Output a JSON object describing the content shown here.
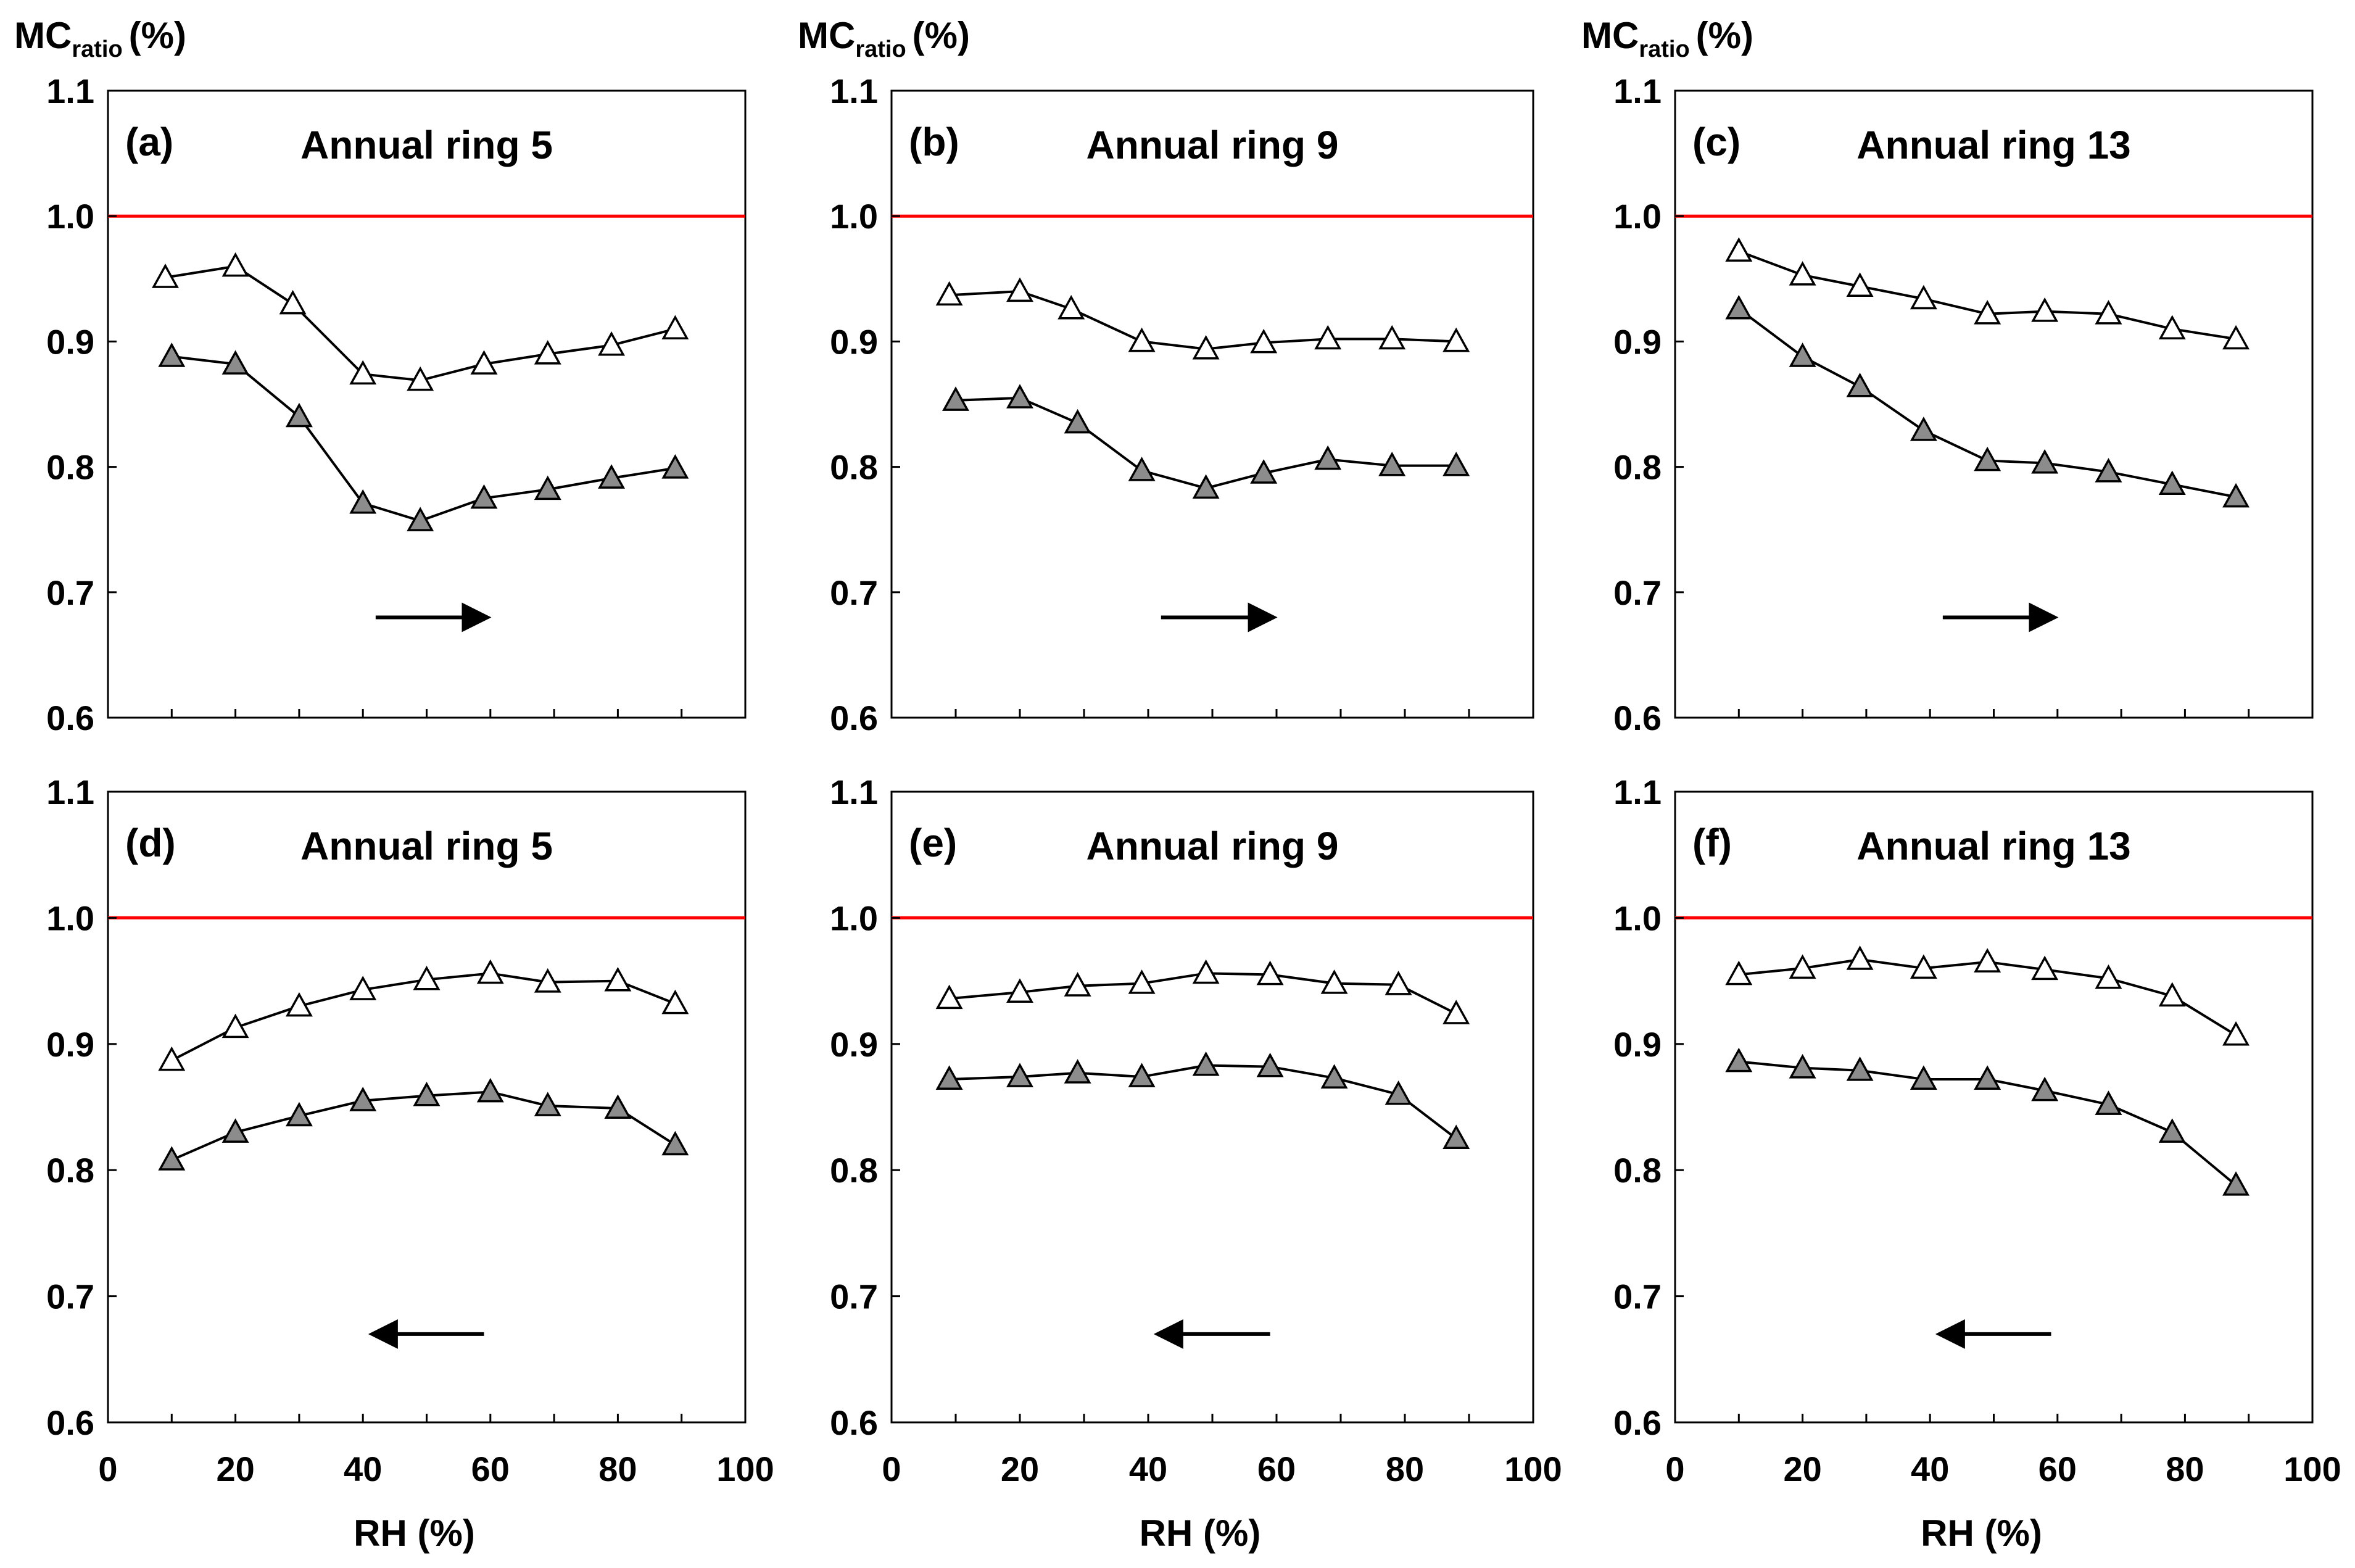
{
  "ylabel": {
    "main": "MC",
    "sub": "ratio",
    "unit": "(%)"
  },
  "xlabel": "RH (%)",
  "x_ticks": [
    "0",
    "20",
    "40",
    "60",
    "80",
    "100"
  ],
  "y_ticks": [
    "0.6",
    "0.7",
    "0.8",
    "0.9",
    "1.0",
    "1.1"
  ],
  "chart_data": [
    {
      "panel": "(a)",
      "title": "Annual ring 5",
      "type": "line",
      "direction": "right",
      "xlim": [
        0,
        100
      ],
      "ylim": [
        0.6,
        1.1
      ],
      "reference_line": 1.0,
      "series": [
        {
          "name": "open",
          "marker": "open-triangle",
          "x": [
            9,
            20,
            29,
            40,
            49,
            59,
            69,
            79,
            89
          ],
          "values": [
            0.951,
            0.96,
            0.93,
            0.874,
            0.869,
            0.882,
            0.89,
            0.897,
            0.91
          ]
        },
        {
          "name": "filled",
          "marker": "filled-triangle",
          "x": [
            10,
            20,
            30,
            40,
            49,
            59,
            69,
            79,
            89
          ],
          "values": [
            0.888,
            0.882,
            0.84,
            0.771,
            0.757,
            0.775,
            0.782,
            0.791,
            0.799
          ]
        }
      ]
    },
    {
      "panel": "(b)",
      "title": "Annual ring 9",
      "type": "line",
      "direction": "right",
      "xlim": [
        0,
        100
      ],
      "ylim": [
        0.6,
        1.1
      ],
      "reference_line": 1.0,
      "series": [
        {
          "name": "open",
          "marker": "open-triangle",
          "x": [
            9,
            20,
            28,
            39,
            49,
            58,
            68,
            78,
            88
          ],
          "values": [
            0.937,
            0.94,
            0.926,
            0.9,
            0.894,
            0.899,
            0.902,
            0.902,
            0.9
          ]
        },
        {
          "name": "filled",
          "marker": "filled-triangle",
          "x": [
            10,
            20,
            29,
            39,
            49,
            58,
            68,
            78,
            88
          ],
          "values": [
            0.853,
            0.855,
            0.835,
            0.797,
            0.783,
            0.795,
            0.806,
            0.801,
            0.801
          ]
        }
      ]
    },
    {
      "panel": "(c)",
      "title": "Annual ring 13",
      "type": "line",
      "direction": "right",
      "xlim": [
        0,
        100
      ],
      "ylim": [
        0.6,
        1.1
      ],
      "reference_line": 1.0,
      "series": [
        {
          "name": "open",
          "marker": "open-triangle",
          "x": [
            10,
            20,
            29,
            39,
            49,
            58,
            68,
            78,
            88
          ],
          "values": [
            0.972,
            0.953,
            0.944,
            0.934,
            0.922,
            0.924,
            0.922,
            0.91,
            0.902
          ]
        },
        {
          "name": "filled",
          "marker": "filled-triangle",
          "x": [
            10,
            20,
            29,
            39,
            49,
            58,
            68,
            78,
            88
          ],
          "values": [
            0.926,
            0.888,
            0.864,
            0.829,
            0.805,
            0.803,
            0.796,
            0.786,
            0.776
          ]
        }
      ]
    },
    {
      "panel": "(d)",
      "title": "Annual ring 5",
      "type": "line",
      "direction": "left",
      "xlim": [
        0,
        100
      ],
      "ylim": [
        0.6,
        1.1
      ],
      "reference_line": 1.0,
      "series": [
        {
          "name": "open",
          "marker": "open-triangle",
          "x": [
            10,
            20,
            30,
            40,
            50,
            60,
            69,
            80,
            89
          ],
          "values": [
            0.887,
            0.913,
            0.93,
            0.943,
            0.951,
            0.956,
            0.949,
            0.95,
            0.932
          ]
        },
        {
          "name": "filled",
          "marker": "filled-triangle",
          "x": [
            10,
            20,
            30,
            40,
            50,
            60,
            69,
            80,
            89
          ],
          "values": [
            0.808,
            0.83,
            0.843,
            0.855,
            0.859,
            0.862,
            0.851,
            0.849,
            0.82
          ]
        }
      ]
    },
    {
      "panel": "(e)",
      "title": "Annual ring 9",
      "type": "line",
      "direction": "left",
      "xlim": [
        0,
        100
      ],
      "ylim": [
        0.6,
        1.1
      ],
      "reference_line": 1.0,
      "series": [
        {
          "name": "open",
          "marker": "open-triangle",
          "x": [
            9,
            20,
            29,
            39,
            49,
            59,
            69,
            79,
            88
          ],
          "values": [
            0.936,
            0.941,
            0.946,
            0.948,
            0.956,
            0.955,
            0.948,
            0.947,
            0.924
          ]
        },
        {
          "name": "filled",
          "marker": "filled-triangle",
          "x": [
            9,
            20,
            29,
            39,
            49,
            59,
            69,
            79,
            88
          ],
          "values": [
            0.872,
            0.874,
            0.877,
            0.874,
            0.883,
            0.882,
            0.873,
            0.86,
            0.825
          ]
        }
      ]
    },
    {
      "panel": "(f)",
      "title": "Annual ring 13",
      "type": "line",
      "direction": "left",
      "xlim": [
        0,
        100
      ],
      "ylim": [
        0.6,
        1.1
      ],
      "reference_line": 1.0,
      "series": [
        {
          "name": "open",
          "marker": "open-triangle",
          "x": [
            10,
            20,
            29,
            39,
            49,
            58,
            68,
            78,
            88
          ],
          "values": [
            0.955,
            0.96,
            0.967,
            0.96,
            0.965,
            0.959,
            0.952,
            0.938,
            0.907
          ]
        },
        {
          "name": "filled",
          "marker": "filled-triangle",
          "x": [
            10,
            20,
            29,
            39,
            49,
            58,
            68,
            78,
            88
          ],
          "values": [
            0.886,
            0.881,
            0.879,
            0.872,
            0.872,
            0.863,
            0.852,
            0.83,
            0.788
          ]
        }
      ]
    }
  ],
  "colors": {
    "reference_line": "#ff0000",
    "series_line": "#000000",
    "filled_marker": "#8c8c8c",
    "open_marker": "#ffffff",
    "axis": "#000000"
  }
}
